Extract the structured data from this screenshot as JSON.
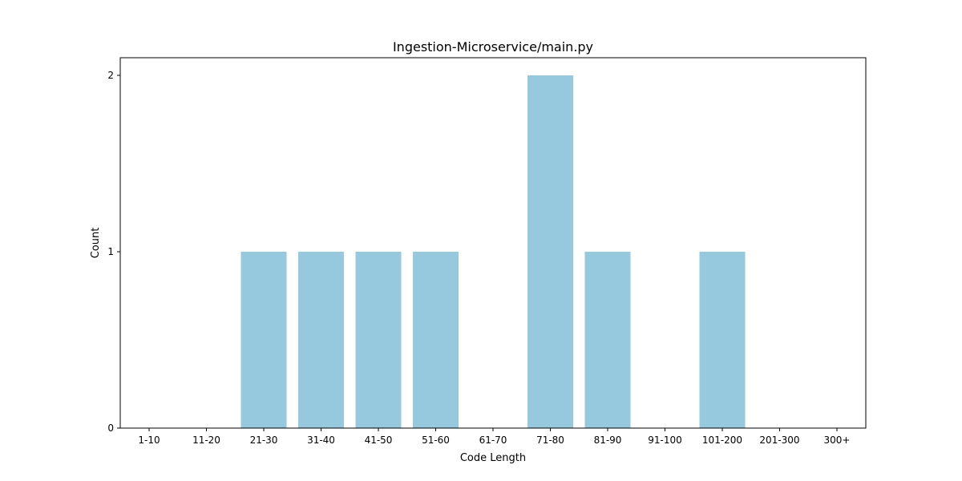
{
  "chart_data": {
    "type": "bar",
    "title": "Ingestion-Microservice/main.py",
    "xlabel": "Code Length",
    "ylabel": "Count",
    "categories": [
      "1-10",
      "11-20",
      "21-30",
      "31-40",
      "41-50",
      "51-60",
      "61-70",
      "71-80",
      "81-90",
      "91-100",
      "101-200",
      "201-300",
      "300+"
    ],
    "values": [
      0,
      0,
      1,
      1,
      1,
      1,
      0,
      2,
      1,
      0,
      1,
      0,
      0
    ],
    "yticks": [
      0,
      1,
      2
    ],
    "ylim": [
      0,
      2.1
    ],
    "grid": false,
    "bar_color": "#96c9dd"
  }
}
